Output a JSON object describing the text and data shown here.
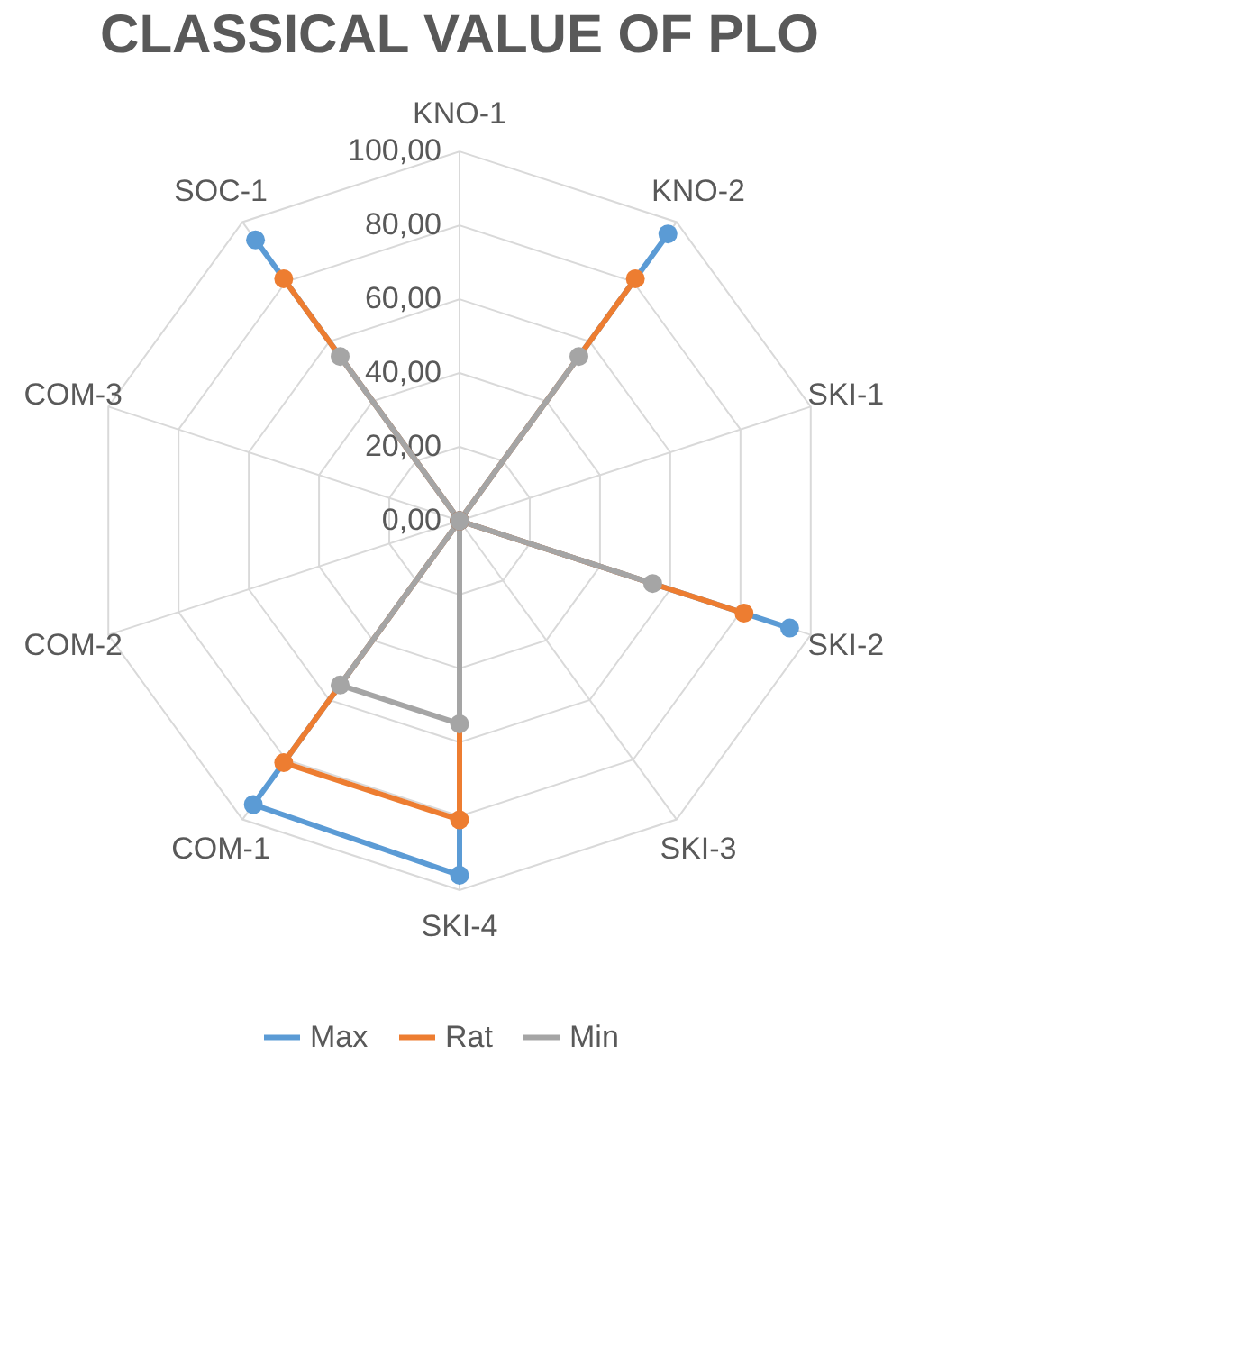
{
  "chart_data": {
    "type": "radar",
    "title": "CLASSICAL VALUE OF PLO",
    "categories": [
      "KNO-1",
      "KNO-2",
      "SKI-1",
      "SKI-2",
      "SKI-3",
      "SKI-4",
      "COM-1",
      "COM-2",
      "COM-3",
      "SOC-1"
    ],
    "series": [
      {
        "name": "Max",
        "color": "#5b9bd5",
        "values": [
          0,
          96,
          0,
          94,
          0,
          96,
          95,
          0,
          0,
          94
        ]
      },
      {
        "name": "Rat",
        "color": "#ed7d31",
        "values": [
          0,
          81,
          0,
          81,
          0,
          81,
          81,
          0,
          0,
          81
        ]
      },
      {
        "name": "Min",
        "color": "#a5a5a5",
        "values": [
          0,
          55,
          0,
          55,
          0,
          55,
          55,
          0,
          0,
          55
        ]
      }
    ],
    "ylim": [
      0,
      100
    ],
    "yticks": [
      {
        "value": 0,
        "label": "0,00"
      },
      {
        "value": 20,
        "label": "20,00"
      },
      {
        "value": 40,
        "label": "40,00"
      },
      {
        "value": 60,
        "label": "60,00"
      },
      {
        "value": 80,
        "label": "80,00"
      },
      {
        "value": 100,
        "label": "100,00"
      }
    ],
    "grid": true,
    "marker": "circle",
    "legend": "bottom"
  }
}
